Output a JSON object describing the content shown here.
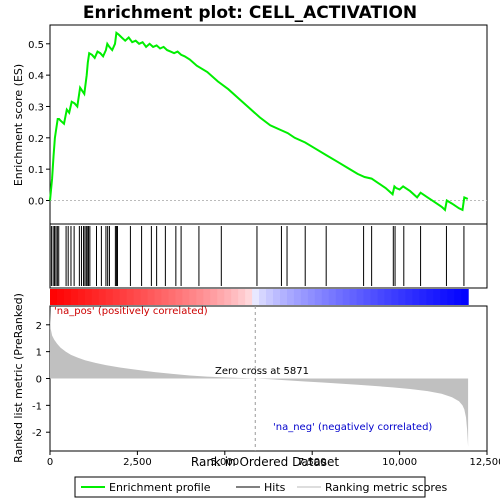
{
  "chart_data": {
    "type": "line",
    "title": "Enrichment plot: CELL_ACTIVATION",
    "top_panel": {
      "ylabel": "Enrichment score (ES)",
      "ylim": [
        -0.075,
        0.56
      ],
      "yticks": [
        0.0,
        0.1,
        0.2,
        0.3,
        0.4,
        0.5
      ],
      "ytick_labels": [
        "0.0",
        "0.1",
        "0.2",
        "0.3",
        "0.4",
        "0.5"
      ],
      "series": [
        {
          "name": "Enrichment profile",
          "color": "#00ee00",
          "x": [
            0,
            60,
            100,
            140,
            180,
            220,
            260,
            300,
            400,
            480,
            550,
            620,
            700,
            780,
            860,
            920,
            980,
            1050,
            1080,
            1120,
            1200,
            1280,
            1360,
            1440,
            1520,
            1600,
            1640,
            1700,
            1780,
            1860,
            1900,
            1960,
            2050,
            2150,
            2250,
            2350,
            2450,
            2550,
            2650,
            2750,
            2850,
            2950,
            3050,
            3150,
            3250,
            3350,
            3450,
            3550,
            3650,
            3750,
            3850,
            4000,
            4200,
            4500,
            4800,
            5100,
            5400,
            5700,
            6000,
            6300,
            6600,
            6800,
            7000,
            7300,
            7600,
            7900,
            8200,
            8500,
            8800,
            9000,
            9200,
            9400,
            9600,
            9800,
            9850,
            9900,
            10000,
            10100,
            10300,
            10500,
            10600,
            10800,
            11000,
            11200,
            11300,
            11350,
            11500,
            11700,
            11800,
            11850,
            11950
          ],
          "y": [
            0.0,
            0.07,
            0.14,
            0.2,
            0.23,
            0.26,
            0.26,
            0.255,
            0.245,
            0.29,
            0.28,
            0.315,
            0.31,
            0.3,
            0.36,
            0.35,
            0.34,
            0.4,
            0.44,
            0.47,
            0.465,
            0.455,
            0.475,
            0.47,
            0.46,
            0.48,
            0.5,
            0.49,
            0.48,
            0.5,
            0.535,
            0.53,
            0.52,
            0.51,
            0.52,
            0.505,
            0.51,
            0.5,
            0.505,
            0.49,
            0.5,
            0.49,
            0.495,
            0.485,
            0.49,
            0.48,
            0.475,
            0.47,
            0.475,
            0.465,
            0.46,
            0.45,
            0.43,
            0.41,
            0.38,
            0.355,
            0.325,
            0.295,
            0.265,
            0.24,
            0.225,
            0.215,
            0.2,
            0.185,
            0.165,
            0.145,
            0.125,
            0.105,
            0.085,
            0.075,
            0.07,
            0.055,
            0.04,
            0.02,
            0.045,
            0.04,
            0.035,
            0.045,
            0.03,
            0.01,
            0.025,
            0.01,
            -0.005,
            -0.02,
            -0.03,
            0.0,
            -0.01,
            -0.025,
            -0.03,
            0.01,
            0.005
          ]
        }
      ]
    },
    "hits": [
      40,
      90,
      130,
      170,
      210,
      250,
      460,
      520,
      600,
      690,
      840,
      900,
      960,
      1000,
      1040,
      1080,
      1100,
      1140,
      1330,
      1470,
      1600,
      1650,
      1700,
      1870,
      1900,
      1930,
      2300,
      2620,
      2900,
      3050,
      3300,
      3600,
      3750,
      4260,
      4900,
      5920,
      6620,
      6780,
      7300,
      7900,
      8970,
      9200,
      9820,
      9870,
      10120,
      10600,
      11340,
      11840
    ],
    "ranked_panel": {
      "ylabel": "Ranked list metric (PreRanked)",
      "ylim": [
        -2.7,
        2.7
      ],
      "yticks": [
        -2,
        -1,
        0,
        1,
        2
      ],
      "ytick_labels": [
        "-2",
        "-1",
        "0",
        "1",
        "2"
      ],
      "metric": {
        "x": [
          0,
          20,
          60,
          120,
          200,
          300,
          450,
          600,
          800,
          1000,
          1300,
          1600,
          2000,
          2500,
          3000,
          3500,
          4000,
          4500,
          5000,
          5500,
          5871,
          6300,
          6800,
          7300,
          7800,
          8300,
          8800,
          9300,
          9800,
          10300,
          10800,
          11200,
          11500,
          11700,
          11800,
          11850,
          11900,
          11930,
          11960
        ],
        "y": [
          2.55,
          1.85,
          1.6,
          1.45,
          1.3,
          1.15,
          1.0,
          0.88,
          0.77,
          0.68,
          0.58,
          0.5,
          0.41,
          0.32,
          0.24,
          0.17,
          0.11,
          0.07,
          0.04,
          0.02,
          0.0,
          -0.03,
          -0.07,
          -0.11,
          -0.15,
          -0.19,
          -0.23,
          -0.28,
          -0.33,
          -0.39,
          -0.47,
          -0.57,
          -0.7,
          -0.85,
          -1.0,
          -1.15,
          -1.45,
          -1.9,
          -2.55
        ]
      },
      "pos_label": "'na_pos' (positively correlated)",
      "neg_label": "'na_neg' (negatively correlated)",
      "zero_cross_label": "Zero cross at 5871",
      "zero_cross": 5871
    },
    "xlabel": "Rank in Ordered Dataset",
    "xlim": [
      0,
      12500
    ],
    "xticks": [
      0,
      2500,
      5000,
      7500,
      10000,
      12500
    ],
    "xtick_labels": [
      "0",
      "2,500",
      "5,000",
      "7,500",
      "10,000",
      "12,500"
    ],
    "n_genes": 11960,
    "legend": {
      "placement": "bottom",
      "entries": [
        {
          "label": "Enrichment profile",
          "color": "#00ee00"
        },
        {
          "label": "Hits",
          "color": "#000000"
        },
        {
          "label": "Ranking metric scores",
          "color": "#bbbbbb"
        }
      ]
    },
    "colors": {
      "profile": "#00ee00",
      "pos_label": "#cc0000",
      "neg_label": "#0000cc",
      "metric_fill": "#c0c0c0"
    }
  }
}
